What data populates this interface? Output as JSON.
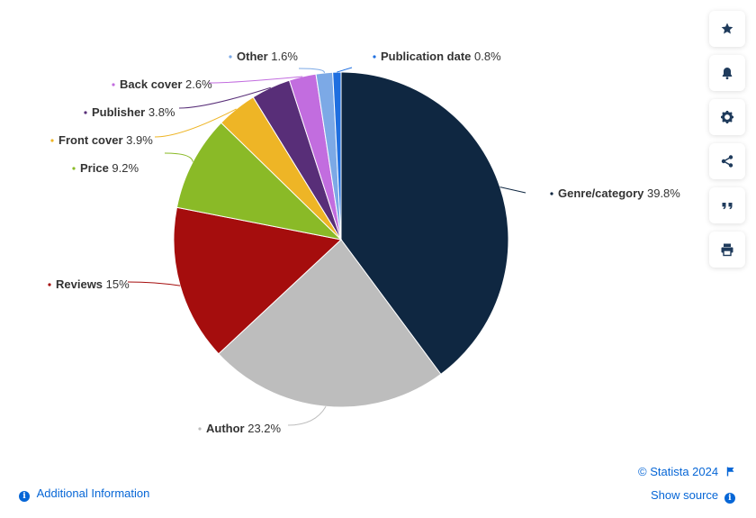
{
  "chart_data": {
    "type": "pie",
    "slices": [
      {
        "name": "Genre/category",
        "value": 39.8,
        "display": "39.8%",
        "color": "#0f2741"
      },
      {
        "name": "Author",
        "value": 23.2,
        "display": "23.2%",
        "color": "#bdbdbd"
      },
      {
        "name": "Reviews",
        "value": 15,
        "display": "15%",
        "color": "#a50d0d"
      },
      {
        "name": "Price",
        "value": 9.2,
        "display": "9.2%",
        "color": "#8aba27"
      },
      {
        "name": "Front cover",
        "value": 3.9,
        "display": "3.9%",
        "color": "#eeb526"
      },
      {
        "name": "Publisher",
        "value": 3.8,
        "display": "3.8%",
        "color": "#582e78"
      },
      {
        "name": "Back cover",
        "value": 2.6,
        "display": "2.6%",
        "color": "#c26ddf"
      },
      {
        "name": "Other",
        "value": 1.6,
        "display": "1.6%",
        "color": "#7ca9e6"
      },
      {
        "name": "Publication date",
        "value": 0.8,
        "display": "0.8%",
        "color": "#1f6fe0"
      }
    ]
  },
  "toolbar": {
    "icons": [
      "star-icon",
      "bell-icon",
      "gear-icon",
      "share-icon",
      "quote-icon",
      "print-icon"
    ]
  },
  "footer": {
    "additional_info": "Additional Information",
    "credit": "© Statista 2024",
    "show_source": "Show source"
  }
}
